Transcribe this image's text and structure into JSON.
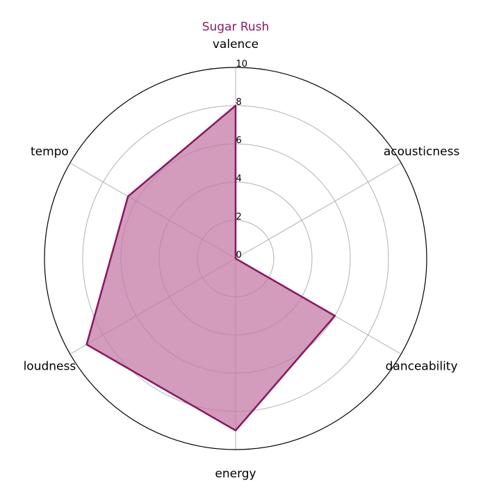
{
  "chart_data": {
    "type": "radar",
    "title": "Sugar Rush",
    "axes": [
      "valence",
      "acousticness",
      "danceability",
      "energy",
      "loudness",
      "tempo"
    ],
    "series": [
      {
        "values": [
          8,
          0,
          6,
          9,
          9,
          6.5
        ]
      }
    ],
    "r_ticks": [
      "0",
      "2",
      "4",
      "6",
      "8",
      "10"
    ],
    "r_range": [
      0,
      10
    ],
    "grid": true,
    "colors": {
      "line": "#8b1a62",
      "fill": "#c47aa6",
      "grid": "#b0b0b0",
      "title": "#8b1a62"
    }
  }
}
